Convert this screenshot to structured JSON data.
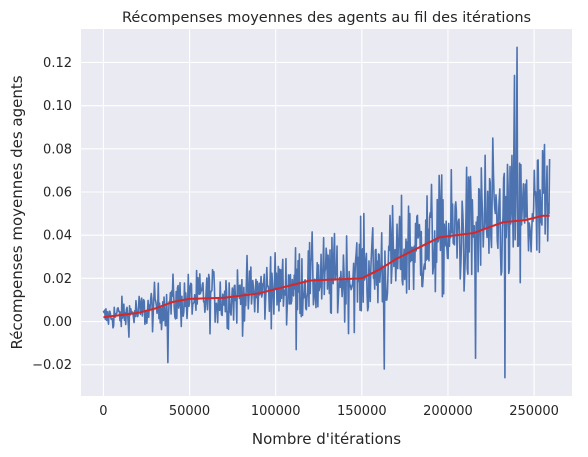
{
  "chart_data": {
    "type": "line",
    "title": "Récompenses moyennes des agents au fil des itérations",
    "xlabel": "Nombre d'itérations",
    "ylabel": "Récompenses moyennes des agents",
    "xlim": [
      -13000,
      272000
    ],
    "ylim": [
      -0.0345,
      0.1355
    ],
    "x_ticks": [
      0,
      50000,
      100000,
      150000,
      200000,
      250000
    ],
    "y_ticks": [
      -0.02,
      0.0,
      0.02,
      0.04,
      0.06,
      0.08,
      0.1,
      0.12
    ],
    "x_tick_labels": [
      "0",
      "50000",
      "100000",
      "150000",
      "200000",
      "250000"
    ],
    "y_tick_labels": [
      "−0.02",
      "0.00",
      "0.02",
      "0.04",
      "0.06",
      "0.08",
      "0.10",
      "0.12"
    ],
    "grid": true,
    "background": "#eaeaf2",
    "series": [
      {
        "kind": "raw",
        "color": "#4c72b0",
        "x_start": 0,
        "x_end": 259000,
        "points": 700,
        "trend_knots": [
          [
            0,
            0.002
          ],
          [
            20000,
            0.004
          ],
          [
            40000,
            0.009
          ],
          [
            60000,
            0.011
          ],
          [
            80000,
            0.012
          ],
          [
            100000,
            0.015
          ],
          [
            120000,
            0.019
          ],
          [
            150000,
            0.021
          ],
          [
            165000,
            0.027
          ],
          [
            185000,
            0.036
          ],
          [
            200000,
            0.04
          ],
          [
            215000,
            0.041
          ],
          [
            230000,
            0.046
          ],
          [
            259000,
            0.049
          ]
        ],
        "noise_knots": [
          [
            0,
            0.003
          ],
          [
            40000,
            0.006
          ],
          [
            100000,
            0.008
          ],
          [
            150000,
            0.011
          ],
          [
            200000,
            0.014
          ],
          [
            240000,
            0.017
          ],
          [
            259000,
            0.017
          ]
        ],
        "spikes": [
          [
            37500,
            -0.019
          ],
          [
            63500,
            0.024
          ],
          [
            97000,
            0.03
          ],
          [
            112000,
            -0.013
          ],
          [
            129500,
            0.034
          ],
          [
            151000,
            0.05
          ],
          [
            163000,
            -0.022
          ],
          [
            178000,
            0.05
          ],
          [
            187000,
            0.047
          ],
          [
            216000,
            -0.017
          ],
          [
            221500,
            0.077
          ],
          [
            226000,
            0.085
          ],
          [
            233000,
            -0.026
          ],
          [
            238500,
            0.114
          ],
          [
            240000,
            0.127
          ],
          [
            242000,
            0.018
          ],
          [
            256000,
            0.082
          ]
        ]
      },
      {
        "kind": "moving_average",
        "color": "#d62728",
        "x_start": 0,
        "x_end": 259000,
        "knots": [
          [
            0,
            0.002
          ],
          [
            20000,
            0.004
          ],
          [
            30000,
            0.006
          ],
          [
            40000,
            0.009
          ],
          [
            50000,
            0.0105
          ],
          [
            70000,
            0.011
          ],
          [
            90000,
            0.013
          ],
          [
            110000,
            0.017
          ],
          [
            120000,
            0.019
          ],
          [
            150000,
            0.02
          ],
          [
            160000,
            0.024
          ],
          [
            170000,
            0.029
          ],
          [
            185000,
            0.035
          ],
          [
            195000,
            0.039
          ],
          [
            215000,
            0.041
          ],
          [
            225000,
            0.044
          ],
          [
            232000,
            0.046
          ],
          [
            245000,
            0.047
          ],
          [
            255000,
            0.049
          ],
          [
            259000,
            0.049
          ]
        ]
      }
    ]
  }
}
